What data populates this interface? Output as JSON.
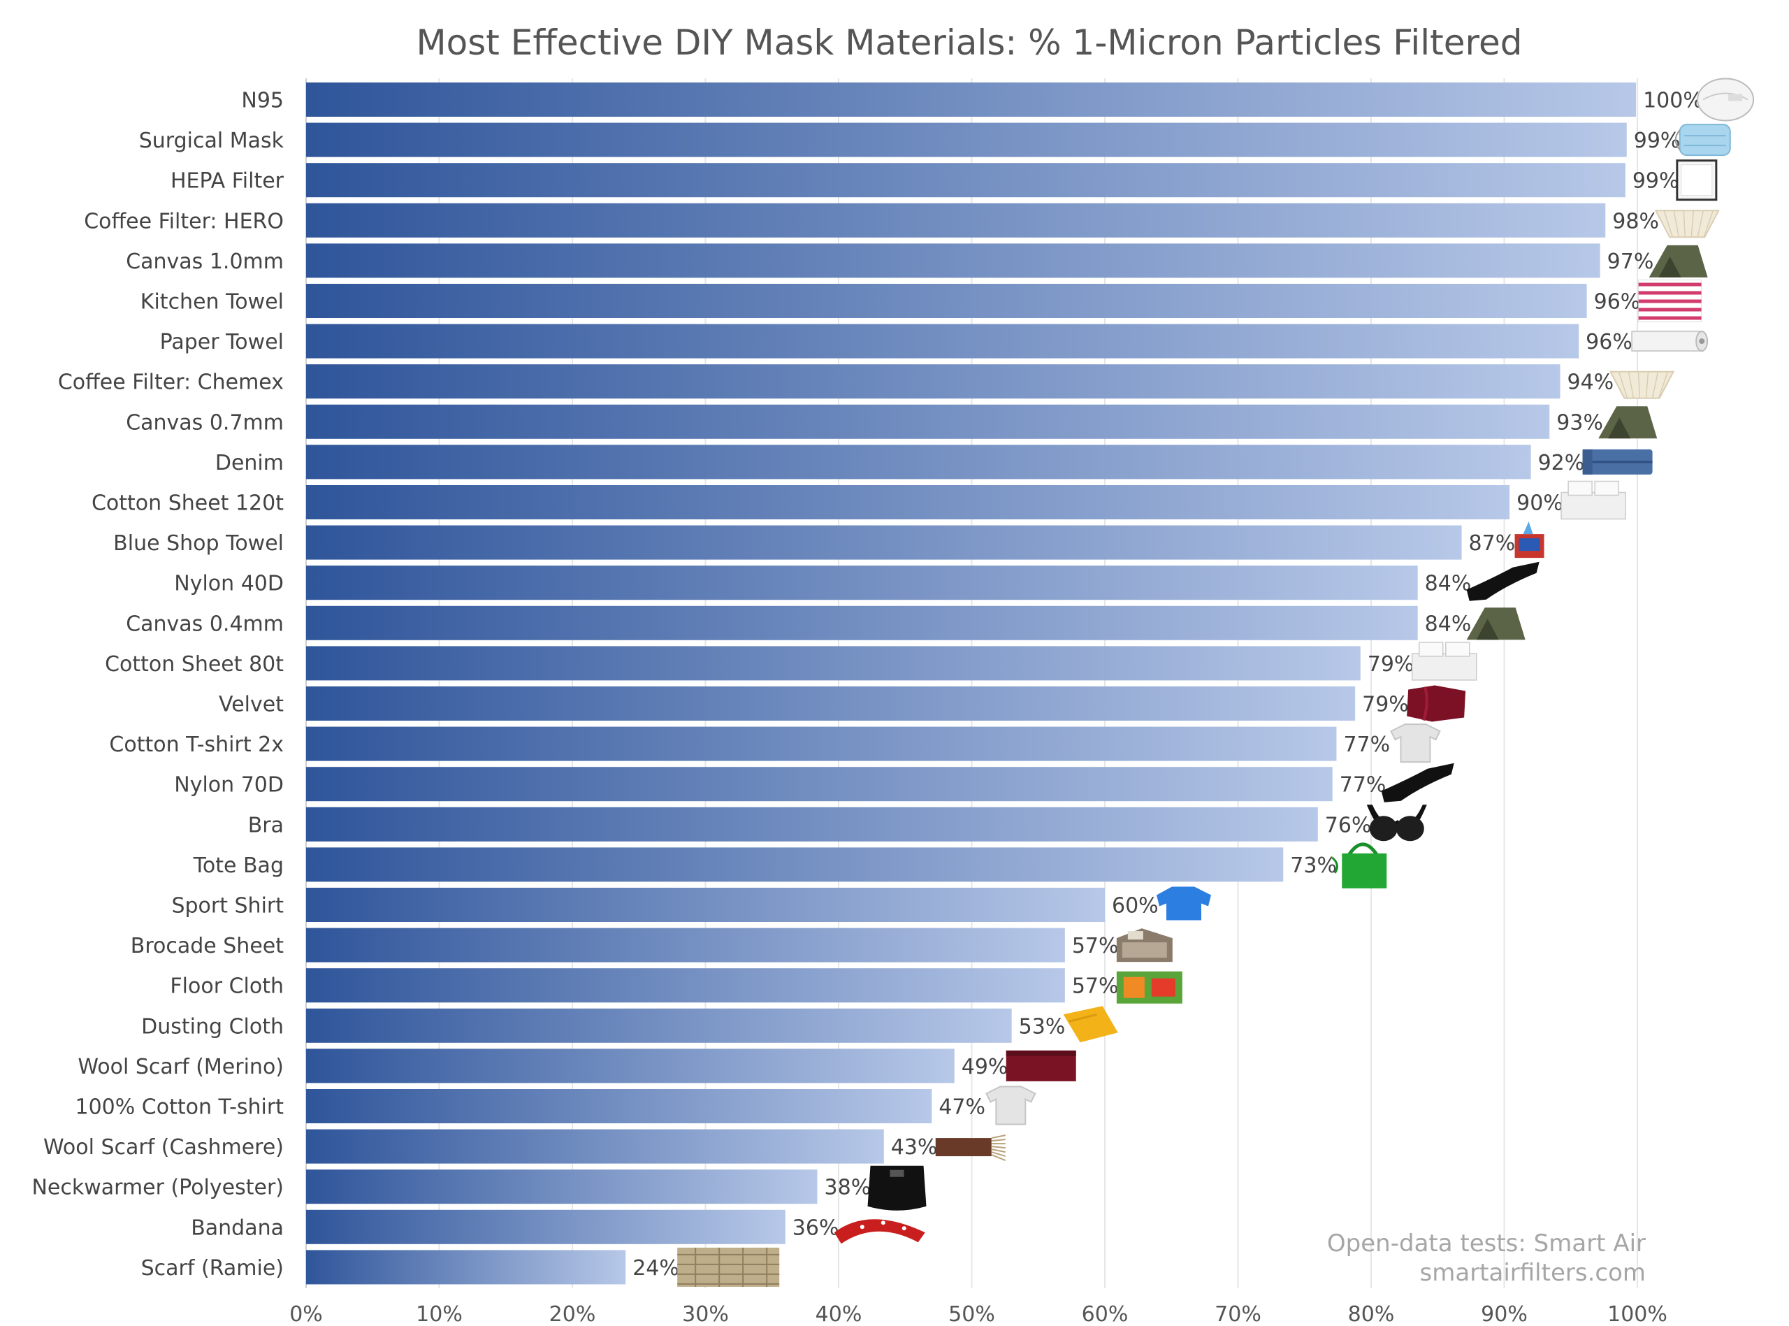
{
  "chart_data": {
    "type": "bar",
    "orientation": "horizontal",
    "title": "Most Effective DIY Mask Materials: % 1-Micron Particles Filtered",
    "xlabel": "",
    "ylabel": "",
    "xlim": [
      0,
      100
    ],
    "grid": true,
    "legend": "none",
    "x_ticks": [
      "0%",
      "10%",
      "20%",
      "30%",
      "40%",
      "50%",
      "60%",
      "70%",
      "80%",
      "90%",
      "100%"
    ],
    "categories": [
      "N95",
      "Surgical Mask",
      "HEPA Filter",
      "Coffee Filter: HERO",
      "Canvas 1.0mm",
      "Kitchen Towel",
      "Paper Towel",
      "Coffee Filter: Chemex",
      "Canvas 0.7mm",
      "Denim",
      "Cotton Sheet 120t",
      "Blue Shop Towel",
      "Nylon 40D",
      "Canvas 0.4mm",
      "Cotton Sheet 80t",
      "Velvet",
      "Cotton T-shirt 2x",
      "Nylon 70D",
      "Bra",
      "Tote Bag",
      "Sport Shirt",
      "Brocade Sheet",
      "Floor Cloth",
      "Dusting Cloth",
      "Wool Scarf (Merino)",
      "100% Cotton T-shirt",
      "Wool Scarf (Cashmere)",
      "Neckwarmer (Polyester)",
      "Bandana",
      "Scarf (Ramie)"
    ],
    "values": [
      99.9,
      99.2,
      99.1,
      97.6,
      97.2,
      96.2,
      95.6,
      94.2,
      93.4,
      92.0,
      90.4,
      86.8,
      83.5,
      83.5,
      79.2,
      78.8,
      77.4,
      77.1,
      76.0,
      73.4,
      60.0,
      57.0,
      57.0,
      53.0,
      48.7,
      47.0,
      43.4,
      38.4,
      36.0,
      24.0
    ],
    "data_labels": [
      "100%",
      "99%",
      "99%",
      "98%",
      "97%",
      "96%",
      "96%",
      "94%",
      "93%",
      "92%",
      "90%",
      "87%",
      "84%",
      "84%",
      "79%",
      "79%",
      "77%",
      "77%",
      "76%",
      "73%",
      "60%",
      "57%",
      "57%",
      "53%",
      "49%",
      "47%",
      "43%",
      "38%",
      "36%",
      "24%"
    ],
    "source": [
      "Open-data tests: Smart Air",
      "smartairfilters.com"
    ],
    "colors": {
      "bar_start": "#2f559a",
      "bar_end": "#b7c8e8",
      "grid": "#e6e6e6"
    }
  },
  "icons": [
    "n95-mask-icon",
    "surgical-mask-icon",
    "hepa-filter-icon",
    "coffee-filter-icon",
    "canvas-tent-icon",
    "kitchen-towel-icon",
    "paper-towel-roll-icon",
    "coffee-filter-icon",
    "canvas-tent-icon",
    "denim-jeans-icon",
    "cotton-sheet-icon",
    "shop-towel-box-icon",
    "nylon-stocking-icon",
    "canvas-tent-icon",
    "cotton-sheet-icon",
    "velvet-fabric-icon",
    "tshirt-icon",
    "nylon-stocking-icon",
    "bra-icon",
    "tote-bag-icon",
    "sport-shirt-icon",
    "brocade-bedsheet-icon",
    "floor-cloth-pack-icon",
    "dusting-cloth-icon",
    "wool-scarf-icon",
    "tshirt-icon",
    "cashmere-scarf-icon",
    "neckwarmer-icon",
    "bandana-icon",
    "ramie-scarf-icon"
  ]
}
